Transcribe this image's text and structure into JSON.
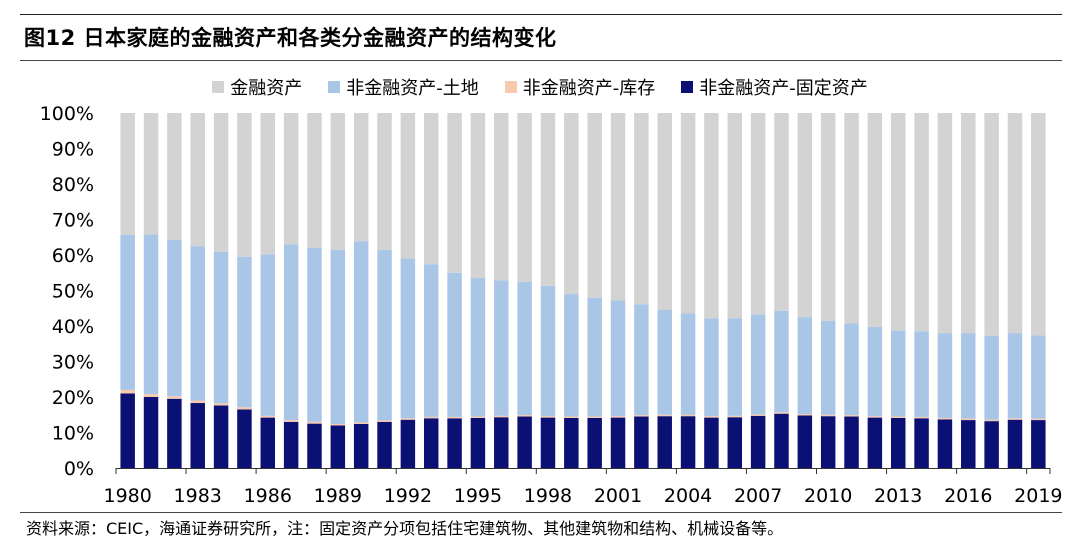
{
  "title": "图12 日本家庭的金融资产和各类分金融资产的结构变化",
  "source": "资料来源：CEIC，海通证券研究所，注：固定资产分项包括住宅建筑物、其他建筑物和结构、机械设备等。",
  "colors": {
    "financial": "#d3d3d3",
    "land": "#a9c6e6",
    "inventory": "#f7c9ad",
    "fixed": "#0b1075"
  },
  "chart_data": {
    "type": "bar",
    "stacked": true,
    "title": "日本家庭的金融资产和各类分金融资产的结构变化",
    "xlabel": "",
    "ylabel": "",
    "ylim": [
      0,
      100
    ],
    "yticks": [
      "0%",
      "10%",
      "20%",
      "30%",
      "40%",
      "50%",
      "60%",
      "70%",
      "80%",
      "90%",
      "100%"
    ],
    "xtick_labels": [
      "1980",
      "1983",
      "1986",
      "1989",
      "1992",
      "1995",
      "1998",
      "2001",
      "2004",
      "2007",
      "2010",
      "2013",
      "2016",
      "2019"
    ],
    "categories": [
      "1980",
      "1981",
      "1982",
      "1983",
      "1984",
      "1985",
      "1986",
      "1987",
      "1988",
      "1989",
      "1990",
      "1991",
      "1992",
      "1993",
      "1994",
      "1995",
      "1996",
      "1997",
      "1998",
      "1999",
      "2000",
      "2001",
      "2002",
      "2003",
      "2004",
      "2005",
      "2006",
      "2007",
      "2008",
      "2009",
      "2010",
      "2011",
      "2012",
      "2013",
      "2014",
      "2015",
      "2016",
      "2017",
      "2018",
      "2019"
    ],
    "series": [
      {
        "name": "非金融资产-固定资产",
        "key": "fixed",
        "values": [
          21.0,
          20.0,
          19.5,
          18.3,
          17.6,
          16.5,
          14.2,
          13.0,
          12.5,
          12.0,
          12.4,
          13.0,
          13.6,
          14.0,
          14.0,
          14.1,
          14.3,
          14.5,
          14.2,
          14.1,
          14.1,
          14.2,
          14.5,
          14.6,
          14.6,
          14.2,
          14.3,
          14.7,
          15.3,
          14.8,
          14.6,
          14.5,
          14.2,
          14.1,
          14.0,
          13.7,
          13.5,
          13.2,
          13.6,
          13.5
        ]
      },
      {
        "name": "非金融资产-库存",
        "key": "inventory",
        "values": [
          1.0,
          0.8,
          0.7,
          0.7,
          0.6,
          0.6,
          0.5,
          0.5,
          0.5,
          0.4,
          0.4,
          0.4,
          0.4,
          0.4,
          0.4,
          0.4,
          0.4,
          0.4,
          0.4,
          0.4,
          0.4,
          0.4,
          0.4,
          0.4,
          0.4,
          0.4,
          0.4,
          0.4,
          0.4,
          0.4,
          0.4,
          0.4,
          0.4,
          0.4,
          0.4,
          0.4,
          0.4,
          0.4,
          0.4,
          0.4
        ]
      },
      {
        "name": "非金融资产-土地",
        "key": "land",
        "values": [
          43.7,
          45.0,
          44.1,
          43.5,
          42.7,
          42.4,
          45.5,
          49.5,
          49.0,
          49.1,
          51.0,
          48.0,
          45.0,
          43.0,
          40.6,
          39.0,
          38.2,
          37.6,
          36.7,
          34.5,
          33.4,
          32.6,
          31.2,
          29.6,
          28.6,
          27.6,
          27.5,
          28.2,
          28.6,
          27.3,
          26.4,
          25.8,
          25.2,
          24.2,
          24.1,
          23.9,
          24.1,
          23.6,
          24.0,
          23.5
        ]
      },
      {
        "name": "金融资产",
        "key": "financial",
        "values": [
          34.3,
          34.2,
          35.7,
          37.5,
          39.1,
          40.5,
          39.8,
          37.0,
          38.0,
          38.5,
          36.2,
          38.6,
          41.0,
          42.6,
          45.0,
          46.5,
          47.1,
          47.5,
          48.7,
          51.0,
          52.1,
          52.8,
          53.9,
          55.4,
          56.4,
          57.8,
          57.8,
          56.7,
          55.7,
          57.5,
          58.6,
          59.3,
          60.2,
          61.3,
          61.5,
          62.0,
          62.0,
          62.8,
          62.0,
          62.6
        ]
      }
    ],
    "legend": [
      "金融资产",
      "非金融资产-土地",
      "非金融资产-库存",
      "非金融资产-固定资产"
    ],
    "legend_position": "top"
  }
}
